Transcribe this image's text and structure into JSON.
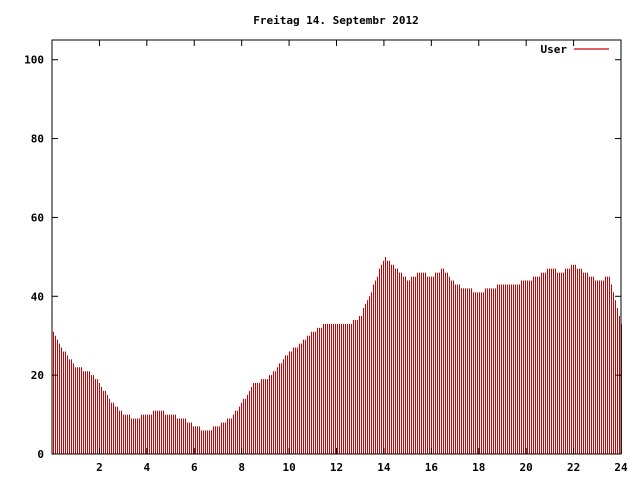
{
  "chart_data": {
    "type": "bar",
    "title": "Freitag 14. Septembr 2012",
    "xlabel": "",
    "ylabel": "",
    "xlim": [
      0,
      24
    ],
    "ylim": [
      0,
      105
    ],
    "grid": false,
    "legend_position": "top-right",
    "x_ticks": [
      "2",
      "4",
      "6",
      "8",
      "10",
      "12",
      "14",
      "16",
      "18",
      "20",
      "22",
      "24"
    ],
    "y_ticks": [
      "0",
      "20",
      "40",
      "60",
      "80",
      "100"
    ],
    "x_tick_values": [
      2,
      4,
      6,
      8,
      10,
      12,
      14,
      16,
      18,
      20,
      22,
      24
    ],
    "y_tick_values": [
      0,
      20,
      40,
      60,
      80,
      100
    ],
    "series": [
      {
        "name": "User",
        "color": "#cc0000",
        "x": [
          0,
          0.5,
          1,
          1.5,
          2,
          2.5,
          3,
          3.5,
          4,
          4.5,
          5,
          5.5,
          6,
          6.5,
          7,
          7.5,
          8,
          8.5,
          9,
          9.5,
          10,
          10.5,
          11,
          11.5,
          12,
          12.5,
          13,
          13.5,
          14,
          14.5,
          15,
          15.5,
          16,
          16.5,
          17,
          17.5,
          18,
          18.5,
          19,
          19.5,
          20,
          20.5,
          21,
          21.5,
          22,
          22.5,
          23,
          23.5,
          24
        ],
        "values": [
          32,
          26,
          22,
          21,
          18,
          13,
          10,
          9,
          10,
          11,
          10,
          9,
          7,
          6,
          7,
          9,
          13,
          18,
          19,
          22,
          26,
          28,
          31,
          33,
          33,
          33,
          35,
          42,
          50,
          47,
          44,
          46,
          45,
          47,
          43,
          42,
          41,
          42,
          43,
          43,
          44,
          45,
          47,
          46,
          48,
          46,
          44,
          45,
          33
        ]
      }
    ]
  }
}
